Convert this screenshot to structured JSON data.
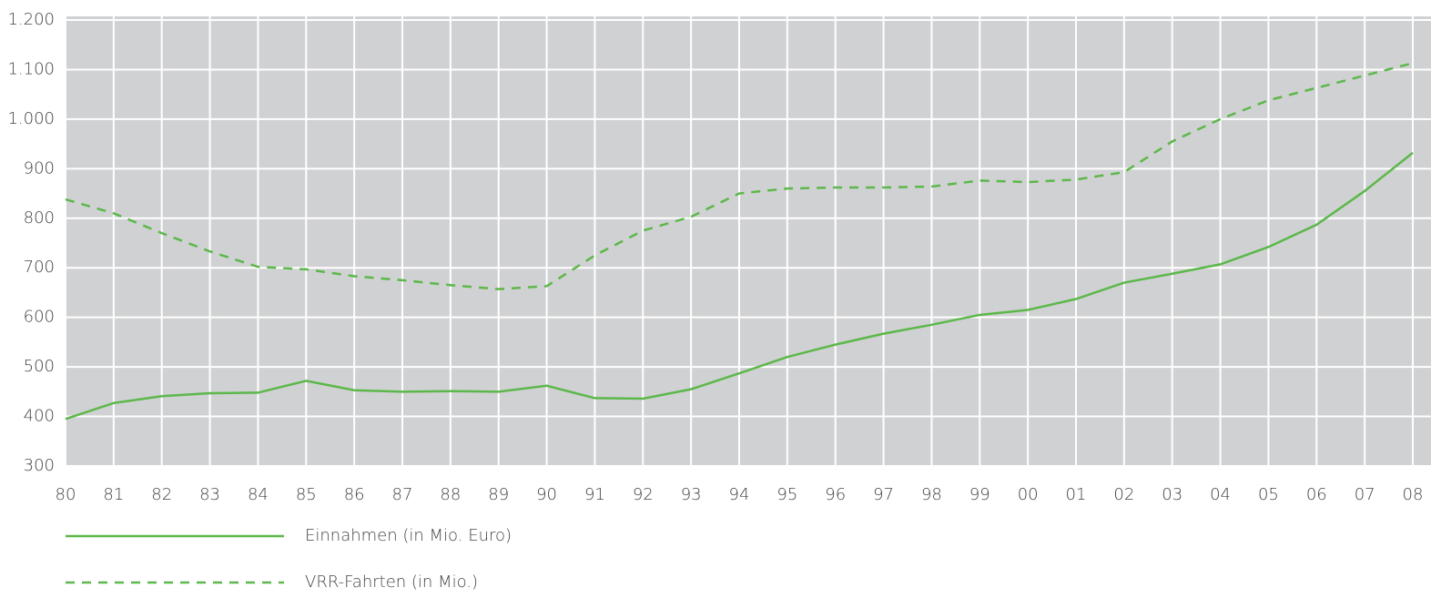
{
  "chart_data": {
    "type": "line",
    "categories": [
      "80",
      "81",
      "82",
      "83",
      "84",
      "85",
      "86",
      "87",
      "88",
      "89",
      "90",
      "91",
      "92",
      "93",
      "94",
      "95",
      "96",
      "97",
      "98",
      "99",
      "00",
      "01",
      "02",
      "03",
      "04",
      "05",
      "06",
      "07",
      "08"
    ],
    "series": [
      {
        "name": "Einnahmen (in Mio. Euro)",
        "color": "#5cb84a",
        "dash": false,
        "values": [
          395,
          427,
          441,
          447,
          448,
          472,
          453,
          450,
          451,
          450,
          462,
          437,
          436,
          455,
          487,
          520,
          545,
          567,
          585,
          605,
          615,
          637,
          670,
          688,
          707,
          742,
          787,
          855,
          932
        ]
      },
      {
        "name": "VRR-Fahrten (in Mio.)",
        "color": "#5cb84a",
        "dash": true,
        "values": [
          838,
          810,
          770,
          733,
          702,
          697,
          683,
          675,
          665,
          657,
          663,
          725,
          775,
          803,
          850,
          860,
          862,
          862,
          864,
          876,
          873,
          878,
          893,
          955,
          1000,
          1038,
          1063,
          1088,
          1113
        ]
      }
    ],
    "ylim": [
      300,
      1200
    ],
    "yticks": [
      {
        "value": 1200,
        "label": "1.200"
      },
      {
        "value": 1100,
        "label": "1.100"
      },
      {
        "value": 1000,
        "label": "1.000"
      },
      900,
      800,
      700,
      600,
      500,
      400,
      300
    ],
    "grid": true
  }
}
